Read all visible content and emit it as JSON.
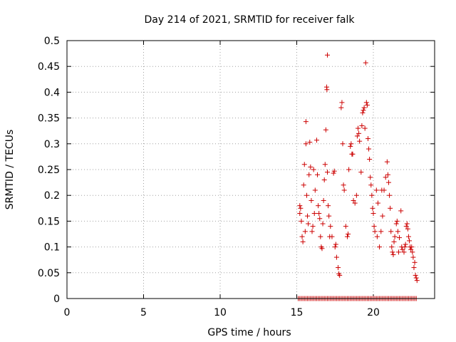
{
  "chart_data": {
    "type": "scatter",
    "title": "Day 214 of 2021, SRMTID for receiver falk",
    "xlabel": "GPS time / hours",
    "ylabel": "SRMTID / TECUs",
    "xlim": [
      0,
      24
    ],
    "ylim": [
      0,
      0.5
    ],
    "x_ticks": [
      0,
      5,
      10,
      15,
      20
    ],
    "x_tick_labels": [
      "0",
      "5",
      "10",
      "15",
      "20"
    ],
    "y_ticks": [
      0,
      0.05,
      0.1,
      0.15,
      0.2,
      0.25,
      0.3,
      0.35,
      0.4,
      0.45,
      0.5
    ],
    "y_tick_labels": [
      "0",
      "0.05",
      "0.1",
      "0.15",
      "0.2",
      "0.25",
      "0.3",
      "0.35",
      "0.4",
      "0.45",
      "0.5"
    ],
    "grid": true,
    "marker": "+",
    "color": "#cc0000",
    "series": [
      {
        "name": "SRMTID",
        "points": [
          [
            15.2,
            0.18
          ],
          [
            15.2,
            0.165
          ],
          [
            15.25,
            0.175
          ],
          [
            15.3,
            0.15
          ],
          [
            15.35,
            0.12
          ],
          [
            15.4,
            0.11
          ],
          [
            15.45,
            0.22
          ],
          [
            15.5,
            0.26
          ],
          [
            15.6,
            0.343
          ],
          [
            15.6,
            0.3
          ],
          [
            15.65,
            0.2
          ],
          [
            15.7,
            0.16
          ],
          [
            15.75,
            0.145
          ],
          [
            15.8,
            0.24
          ],
          [
            15.85,
            0.303
          ],
          [
            15.9,
            0.255
          ],
          [
            15.95,
            0.19
          ],
          [
            16.0,
            0.13
          ],
          [
            16.1,
            0.25
          ],
          [
            16.15,
            0.165
          ],
          [
            16.2,
            0.21
          ],
          [
            16.3,
            0.307
          ],
          [
            16.35,
            0.24
          ],
          [
            16.4,
            0.18
          ],
          [
            16.5,
            0.155
          ],
          [
            16.55,
            0.12
          ],
          [
            16.6,
            0.1
          ],
          [
            16.65,
            0.097
          ],
          [
            16.7,
            0.145
          ],
          [
            16.75,
            0.19
          ],
          [
            16.8,
            0.23
          ],
          [
            16.85,
            0.26
          ],
          [
            16.9,
            0.327
          ],
          [
            16.95,
            0.41
          ],
          [
            16.97,
            0.405
          ],
          [
            17.0,
            0.472
          ],
          [
            17.0,
            0.245
          ],
          [
            17.05,
            0.18
          ],
          [
            17.1,
            0.16
          ],
          [
            17.2,
            0.14
          ],
          [
            17.3,
            0.12
          ],
          [
            17.4,
            0.243
          ],
          [
            17.45,
            0.247
          ],
          [
            17.5,
            0.1
          ],
          [
            17.6,
            0.08
          ],
          [
            17.7,
            0.06
          ],
          [
            17.75,
            0.048
          ],
          [
            17.8,
            0.045
          ],
          [
            17.9,
            0.37
          ],
          [
            17.95,
            0.38
          ],
          [
            18.0,
            0.3
          ],
          [
            18.05,
            0.22
          ],
          [
            18.1,
            0.21
          ],
          [
            18.2,
            0.14
          ],
          [
            18.3,
            0.12
          ],
          [
            18.4,
            0.25
          ],
          [
            18.5,
            0.295
          ],
          [
            18.55,
            0.3
          ],
          [
            18.6,
            0.28
          ],
          [
            18.7,
            0.19
          ],
          [
            18.8,
            0.185
          ],
          [
            18.9,
            0.2
          ],
          [
            18.95,
            0.315
          ],
          [
            19.0,
            0.33
          ],
          [
            19.05,
            0.32
          ],
          [
            19.1,
            0.305
          ],
          [
            19.2,
            0.245
          ],
          [
            19.25,
            0.335
          ],
          [
            19.3,
            0.36
          ],
          [
            19.35,
            0.365
          ],
          [
            19.4,
            0.37
          ],
          [
            19.5,
            0.457
          ],
          [
            19.55,
            0.38
          ],
          [
            19.6,
            0.375
          ],
          [
            19.65,
            0.31
          ],
          [
            19.7,
            0.29
          ],
          [
            19.75,
            0.27
          ],
          [
            19.8,
            0.235
          ],
          [
            19.85,
            0.22
          ],
          [
            19.9,
            0.2
          ],
          [
            19.95,
            0.175
          ],
          [
            20.0,
            0.165
          ],
          [
            20.05,
            0.14
          ],
          [
            20.1,
            0.13
          ],
          [
            20.2,
            0.21
          ],
          [
            20.3,
            0.185
          ],
          [
            20.4,
            0.1
          ],
          [
            20.5,
            0.13
          ],
          [
            20.6,
            0.16
          ],
          [
            20.7,
            0.21
          ],
          [
            20.8,
            0.235
          ],
          [
            20.9,
            0.265
          ],
          [
            20.95,
            0.24
          ],
          [
            21.0,
            0.225
          ],
          [
            21.05,
            0.2
          ],
          [
            21.1,
            0.175
          ],
          [
            21.15,
            0.13
          ],
          [
            21.2,
            0.1
          ],
          [
            21.25,
            0.09
          ],
          [
            21.3,
            0.085
          ],
          [
            21.35,
            0.11
          ],
          [
            21.4,
            0.12
          ],
          [
            21.5,
            0.145
          ],
          [
            21.55,
            0.15
          ],
          [
            21.6,
            0.13
          ],
          [
            21.7,
            0.118
          ],
          [
            21.8,
            0.17
          ],
          [
            21.85,
            0.1
          ],
          [
            21.9,
            0.095
          ],
          [
            22.0,
            0.09
          ],
          [
            22.05,
            0.1
          ],
          [
            22.1,
            0.105
          ],
          [
            22.15,
            0.14
          ],
          [
            22.2,
            0.145
          ],
          [
            22.25,
            0.135
          ],
          [
            22.3,
            0.12
          ],
          [
            22.35,
            0.112
          ],
          [
            22.4,
            0.1
          ],
          [
            22.45,
            0.095
          ],
          [
            22.5,
            0.1
          ],
          [
            22.55,
            0.09
          ],
          [
            22.6,
            0.08
          ],
          [
            22.7,
            0.07
          ],
          [
            22.75,
            0.045
          ],
          [
            22.8,
            0.04
          ],
          [
            22.85,
            0.035
          ],
          [
            16.05,
            0.14
          ],
          [
            17.15,
            0.12
          ],
          [
            18.65,
            0.28
          ],
          [
            19.45,
            0.33
          ],
          [
            20.25,
            0.12
          ],
          [
            21.65,
            0.09
          ],
          [
            22.65,
            0.06
          ],
          [
            15.55,
            0.13
          ],
          [
            16.45,
            0.165
          ],
          [
            17.55,
            0.105
          ],
          [
            18.35,
            0.125
          ],
          [
            20.55,
            0.21
          ]
        ]
      },
      {
        "name": "Zero values",
        "x_start": 15.1,
        "x_end": 22.8,
        "x_step": 0.1,
        "y": 0
      }
    ]
  }
}
